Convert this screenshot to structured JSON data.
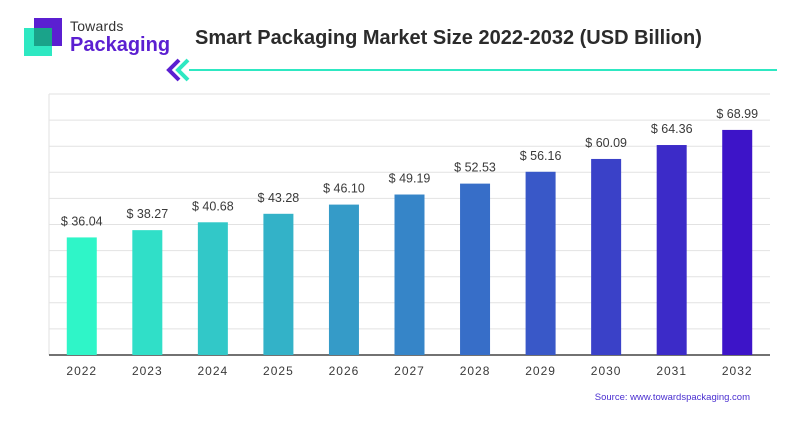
{
  "brand": {
    "line1": "Towards",
    "line2": "Packaging",
    "color_primary": "#5b1fd1",
    "color_secondary": "#2ee8c2"
  },
  "header": {
    "title": "Smart Packaging Market Size 2022-2032 (USD Billion)"
  },
  "footer": {
    "source_text": "Source: www.towardspackaging.com",
    "source_color": "#4a2fd0"
  },
  "chart_data": {
    "type": "bar",
    "title": "Smart Packaging Market Size 2022-2032 (USD Billion)",
    "xlabel": "",
    "ylabel": "",
    "categories": [
      "2022",
      "2023",
      "2024",
      "2025",
      "2026",
      "2027",
      "2028",
      "2029",
      "2030",
      "2031",
      "2032"
    ],
    "values": [
      36.04,
      38.27,
      40.68,
      43.28,
      46.1,
      49.19,
      52.53,
      56.16,
      60.09,
      64.36,
      68.99
    ],
    "value_labels": [
      "$ 36.04",
      "$ 38.27",
      "$ 40.68",
      "$ 43.28",
      "$ 46.10",
      "$ 49.19",
      "$ 52.53",
      "$ 56.16",
      "$ 60.09",
      "$ 64.36",
      "$ 68.99"
    ],
    "ylim": [
      0,
      80
    ],
    "grid": true,
    "legend": "none",
    "colors": {
      "start": "#2ff5c8",
      "end": "#3d14c8",
      "grid": "#e2e2e2",
      "axis": "#444444",
      "label": "#3a3a3a"
    }
  }
}
